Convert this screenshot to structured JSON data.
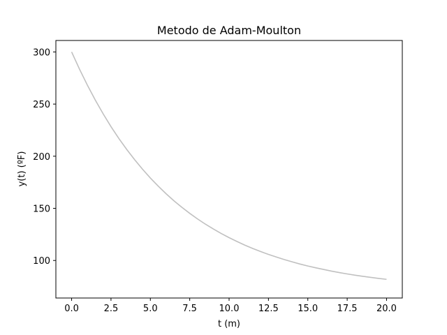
{
  "chart_data": {
    "type": "line",
    "title": "Metodo de Adam-Moulton",
    "xlabel": "t (m)",
    "ylabel": "y(t) (ºF)",
    "xlim": [
      -1.0,
      21.0
    ],
    "ylim": [
      64.0,
      311.0
    ],
    "x_ticks": [
      0.0,
      2.5,
      5.0,
      7.5,
      10.0,
      12.5,
      15.0,
      17.5,
      20.0
    ],
    "x_tick_labels": [
      "0.0",
      "2.5",
      "5.0",
      "7.5",
      "10.0",
      "12.5",
      "15.0",
      "17.5",
      "20.0"
    ],
    "y_ticks": [
      100,
      150,
      200,
      250,
      300
    ],
    "y_tick_labels": [
      "100",
      "150",
      "200",
      "250",
      "300"
    ],
    "grid": false,
    "series": [
      {
        "color": "#c0c0c0",
        "x": [
          0,
          0.5,
          1,
          1.5,
          2,
          2.5,
          3,
          3.5,
          4,
          4.5,
          5,
          5.5,
          6,
          6.5,
          7,
          7.5,
          8,
          8.5,
          9,
          9.5,
          10,
          10.5,
          11,
          11.5,
          12,
          12.5,
          13,
          13.5,
          14,
          14.5,
          15,
          15.5,
          16,
          16.5,
          17,
          17.5,
          18,
          18.5,
          19,
          19.5,
          20
        ],
        "y": [
          300.0,
          283.5,
          268.2,
          253.9,
          240.7,
          228.4,
          217.0,
          206.5,
          196.7,
          187.6,
          179.1,
          171.3,
          164.0,
          157.2,
          151.0,
          145.2,
          139.8,
          134.8,
          130.2,
          125.9,
          121.9,
          118.2,
          114.7,
          111.5,
          108.6,
          105.8,
          103.3,
          100.9,
          98.7,
          96.6,
          94.7,
          93.0,
          91.4,
          89.8,
          88.4,
          87.1,
          85.9,
          84.8,
          83.8,
          82.8,
          81.9
        ]
      }
    ]
  }
}
